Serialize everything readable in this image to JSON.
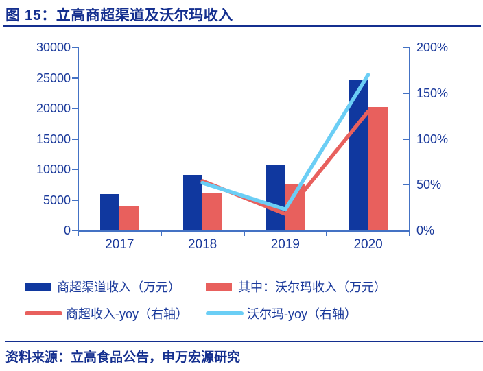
{
  "header": {
    "title": "图 15：立高商超渠道及沃尔玛收入"
  },
  "chart_data": {
    "type": "bar",
    "subtype": "combo-bar-line-dual-axis",
    "categories": [
      "2017",
      "2018",
      "2019",
      "2020"
    ],
    "bar_series": [
      {
        "name": "商超渠道收入（万元）",
        "color": "#10389F",
        "axis": "left",
        "values": [
          5900,
          9100,
          10700,
          24600
        ]
      },
      {
        "name": "其中：沃尔玛收入（万元）",
        "color": "#E8605D",
        "axis": "left",
        "values": [
          4000,
          6100,
          7500,
          20200
        ]
      }
    ],
    "line_series": [
      {
        "name": "商超收入-yoy（右轴）",
        "color": "#E8605D",
        "axis": "right",
        "values_pct": [
          null,
          54,
          18,
          130
        ]
      },
      {
        "name": "沃尔玛-yoy（右轴）",
        "color": "#6BCEF5",
        "axis": "right",
        "values_pct": [
          null,
          52,
          23,
          170
        ]
      }
    ],
    "left_axis": {
      "min": 0,
      "max": 30000,
      "ticks": [
        0,
        5000,
        10000,
        15000,
        20000,
        25000,
        30000
      ]
    },
    "right_axis": {
      "min": 0,
      "max": 200,
      "tick_labels": [
        "0%",
        "50%",
        "100%",
        "150%",
        "200%"
      ],
      "tick_values": [
        0,
        50,
        100,
        150,
        200
      ]
    },
    "xlabel": "",
    "ylabel": "",
    "grid": false,
    "legend_position": "bottom"
  },
  "footer": {
    "source": "资料来源：立高食品公告，申万宏源研究"
  },
  "colors": {
    "title_navy": "#142F8F",
    "text_navy": "#1B3A9B",
    "axis_line_blue": "#4472C4",
    "bar_blue": "#10389F",
    "bar_salmon": "#E8605D",
    "line_salmon": "#E8605D",
    "line_cyan": "#6BCEF5"
  }
}
